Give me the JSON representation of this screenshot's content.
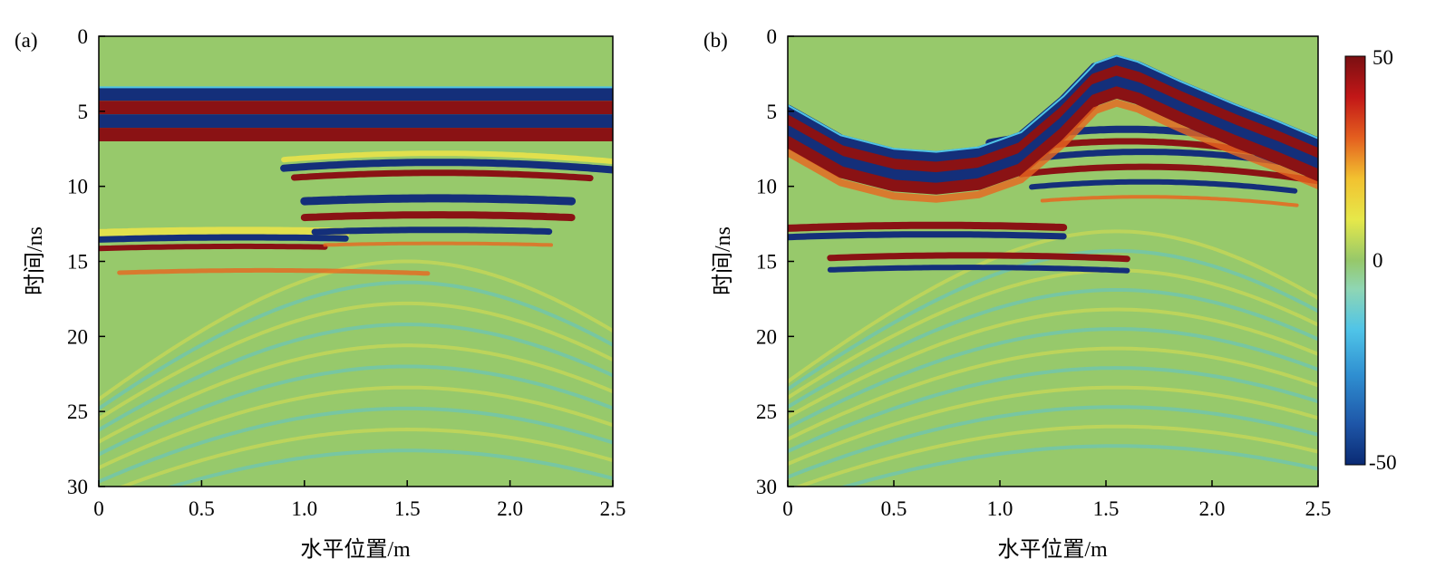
{
  "chart_data": {
    "type": "heatmap",
    "description_units": {
      "x": "m",
      "y": "ns",
      "amplitude": "relative"
    },
    "panels": [
      {
        "id": "a",
        "panel_label": "(a)",
        "xlabel": "水平位置/m",
        "ylabel": "时间/ns",
        "xlim": [
          0,
          2.5
        ],
        "ylim": [
          0,
          30
        ],
        "y_inverted": true,
        "x_ticks": [
          0,
          0.5,
          1.0,
          1.5,
          2.0,
          2.5
        ],
        "x_tick_labels": [
          "0",
          "0.5",
          "1.0",
          "1.5",
          "2.0",
          "2.5"
        ],
        "y_ticks": [
          0,
          5,
          10,
          15,
          20,
          25,
          30
        ],
        "y_tick_labels": [
          "0",
          "5",
          "10",
          "15",
          "20",
          "25",
          "30"
        ],
        "surface": "flat",
        "surface_time_ns": 3.4,
        "features": {
          "direct_wave_bands_ns": [
            3.4,
            4.3,
            5.2,
            6.1,
            7.0
          ],
          "target_hyperbola_apex": {
            "x": 1.65,
            "t": 8.1
          },
          "target_hyperbola_apex_2": {
            "x": 1.65,
            "t": 10.8
          },
          "left_interface_time_ns": 13.6
        }
      },
      {
        "id": "b",
        "panel_label": "(b)",
        "xlabel": "水平位置/m",
        "ylabel": "时间/ns",
        "xlim": [
          0,
          2.5
        ],
        "ylim": [
          0,
          30
        ],
        "y_inverted": true,
        "x_ticks": [
          0,
          0.5,
          1.0,
          1.5,
          2.0,
          2.5
        ],
        "x_tick_labels": [
          "0",
          "0.5",
          "1.0",
          "1.5",
          "2.0",
          "2.5"
        ],
        "y_ticks": [
          0,
          5,
          10,
          15,
          20,
          25,
          30
        ],
        "y_tick_labels": [
          "0",
          "5",
          "10",
          "15",
          "20",
          "25",
          "30"
        ],
        "surface": "undulating",
        "surface_profile": {
          "x": [
            0,
            0.25,
            0.5,
            0.7,
            0.9,
            1.1,
            1.3,
            1.45,
            1.55,
            1.65,
            1.85,
            2.1,
            2.3,
            2.5
          ],
          "t": [
            4.6,
            6.6,
            7.5,
            7.7,
            7.4,
            6.4,
            4.0,
            1.8,
            1.3,
            1.7,
            3.0,
            4.5,
            5.6,
            6.8
          ]
        },
        "features": {
          "target_hyperbola_apex": {
            "x": 1.6,
            "t": 6.2
          },
          "target_hyperbola_apex_2": {
            "x": 1.68,
            "t": 7.7
          },
          "left_interface_time_ns": 13.0
        }
      }
    ],
    "colorbar": {
      "min": -50,
      "max": 50,
      "tick_labels": [
        "50",
        "0",
        "-50"
      ],
      "tick_values": [
        50,
        0,
        -50
      ],
      "colormap": [
        "#0a2a73",
        "#1e56a8",
        "#2f8fd1",
        "#4fc4e8",
        "#8fd6b4",
        "#96c86a",
        "#e6e84a",
        "#f2c230",
        "#e45f1f",
        "#c21717",
        "#7a0f12"
      ]
    }
  },
  "colors": {
    "background_green": "#97c96b",
    "axis": "#000000"
  }
}
